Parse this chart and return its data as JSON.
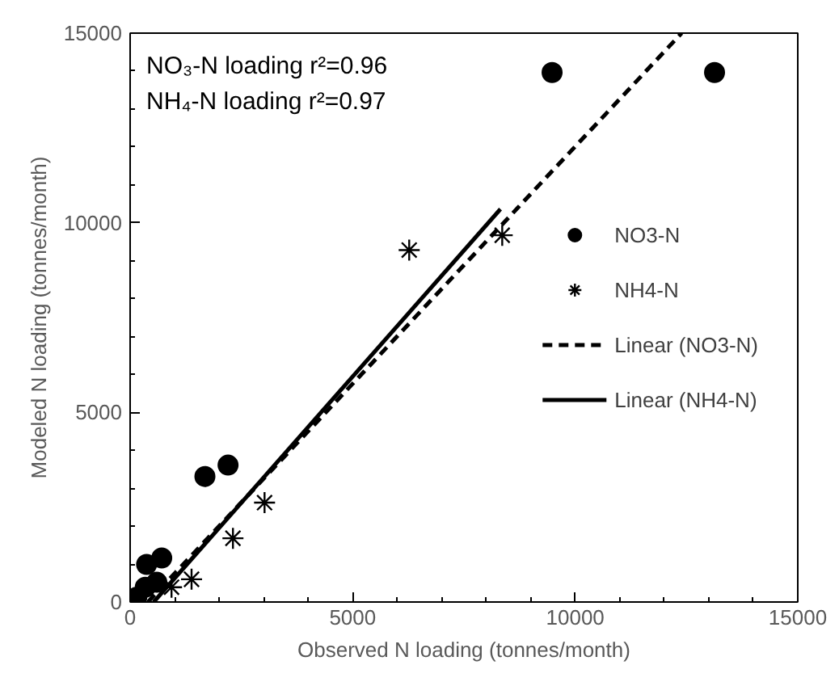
{
  "chart_data": {
    "type": "scatter",
    "xlabel": "Observed N loading (tonnes/month)",
    "ylabel": "Modeled N loading (tonnes/month)",
    "annotations": [
      "NO₃-N loading r²=0.96",
      "NH₄-N loading r²=0.97"
    ],
    "series": [
      {
        "name": "NO3-N",
        "marker": "circle",
        "color": "#000000",
        "x": [
          9480,
          13130,
          1680,
          2200,
          710,
          370,
          600,
          340,
          150
        ],
        "values": [
          13960,
          13960,
          3310,
          3610,
          1160,
          990,
          520,
          390,
          130
        ]
      },
      {
        "name": "NH4-N",
        "marker": "cross",
        "color": "#000000",
        "x": [
          6270,
          8360,
          3020,
          2310,
          1380,
          930
        ],
        "values": [
          9280,
          9670,
          2620,
          1680,
          600,
          390
        ]
      },
      {
        "name": "Linear (NO3-N)",
        "type": "line",
        "line_style": "dashed",
        "color": "#000000",
        "x": [
          400,
          12390
        ],
        "values": [
          0,
          15000
        ]
      },
      {
        "name": "Linear (NH4-N)",
        "type": "line",
        "line_style": "solid",
        "color": "#000000",
        "x": [
          530,
          8320
        ],
        "values": [
          0,
          10360
        ]
      }
    ],
    "xlim": [
      0,
      15000
    ],
    "ylim": [
      0,
      15000
    ],
    "xticks": [
      0,
      {
        "value": 1000,
        "label": null
      },
      {
        "value": 2000,
        "label": null
      },
      {
        "value": 3000,
        "label": null
      },
      {
        "value": 4000,
        "label": null
      },
      5000,
      {
        "value": 6000,
        "label": null
      },
      {
        "value": 7000,
        "label": null
      },
      {
        "value": 8000,
        "label": null
      },
      {
        "value": 9000,
        "label": null
      },
      10000,
      {
        "value": 11000,
        "label": null
      },
      {
        "value": 12000,
        "label": null
      },
      {
        "value": 13000,
        "label": null
      },
      {
        "value": 14000,
        "label": null
      },
      15000
    ],
    "yticks": [
      0,
      {
        "value": 1000,
        "label": null
      },
      {
        "value": 2000,
        "label": null
      },
      {
        "value": 3000,
        "label": null
      },
      {
        "value": 4000,
        "label": null
      },
      5000,
      {
        "value": 6000,
        "label": null
      },
      {
        "value": 7000,
        "label": null
      },
      {
        "value": 8000,
        "label": null
      },
      {
        "value": 9000,
        "label": null
      },
      10000,
      {
        "value": 11000,
        "label": null
      },
      {
        "value": 12000,
        "label": null
      },
      {
        "value": 13000,
        "label": null
      },
      {
        "value": 14000,
        "label": null
      },
      15000
    ],
    "grid": false,
    "legend": "right"
  }
}
